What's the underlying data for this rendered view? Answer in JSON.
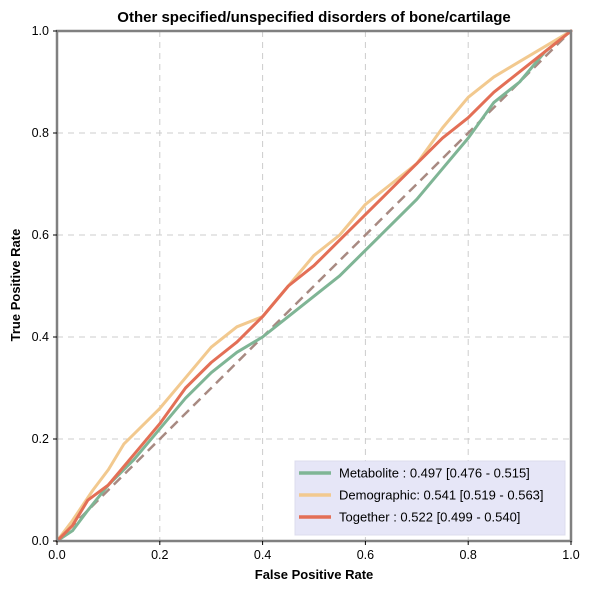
{
  "chart_data": {
    "type": "line",
    "title": "Other specified/unspecified disorders of  bone/cartilage",
    "xlabel": "False Positive Rate",
    "ylabel": "True Positive Rate",
    "xlim": [
      0,
      1
    ],
    "ylim": [
      0,
      1
    ],
    "xticks": [
      "0.0",
      "0.2",
      "0.4",
      "0.6",
      "0.8",
      "1.0"
    ],
    "yticks": [
      "0.0",
      "0.2",
      "0.4",
      "0.6",
      "0.8",
      "1.0"
    ],
    "grid": true,
    "legend_position": "bottom-right",
    "diagonal": {
      "x": [
        0,
        1
      ],
      "y": [
        0,
        1
      ],
      "color": "#a88a82",
      "style": "dashed"
    },
    "series": [
      {
        "name": "Metabolite",
        "legend_label": "Metabolite     : 0.497 [0.476 - 0.515]",
        "color": "#7fb595",
        "x": [
          0,
          0.03,
          0.06,
          0.1,
          0.15,
          0.2,
          0.25,
          0.3,
          0.35,
          0.4,
          0.45,
          0.5,
          0.55,
          0.6,
          0.65,
          0.7,
          0.75,
          0.8,
          0.85,
          0.9,
          0.95,
          1.0
        ],
        "y": [
          0,
          0.02,
          0.06,
          0.11,
          0.16,
          0.22,
          0.28,
          0.33,
          0.37,
          0.4,
          0.44,
          0.48,
          0.52,
          0.57,
          0.62,
          0.67,
          0.73,
          0.79,
          0.86,
          0.9,
          0.96,
          1.0
        ]
      },
      {
        "name": "Demographic",
        "legend_label": "Demographic: 0.541 [0.519 - 0.563]",
        "color": "#f2c98f",
        "x": [
          0,
          0.03,
          0.07,
          0.1,
          0.13,
          0.2,
          0.25,
          0.3,
          0.35,
          0.4,
          0.45,
          0.5,
          0.55,
          0.6,
          0.65,
          0.7,
          0.75,
          0.8,
          0.85,
          0.9,
          0.95,
          1.0
        ],
        "y": [
          0,
          0.04,
          0.1,
          0.14,
          0.19,
          0.26,
          0.32,
          0.38,
          0.42,
          0.44,
          0.5,
          0.56,
          0.6,
          0.66,
          0.7,
          0.74,
          0.81,
          0.87,
          0.91,
          0.94,
          0.97,
          1.0
        ]
      },
      {
        "name": "Together",
        "legend_label": "Together       : 0.522 [0.499 - 0.540]",
        "color": "#e36f56",
        "x": [
          0,
          0.03,
          0.06,
          0.1,
          0.15,
          0.2,
          0.25,
          0.3,
          0.35,
          0.4,
          0.45,
          0.5,
          0.55,
          0.6,
          0.65,
          0.7,
          0.75,
          0.8,
          0.85,
          0.9,
          0.95,
          1.0
        ],
        "y": [
          0,
          0.03,
          0.08,
          0.11,
          0.17,
          0.23,
          0.3,
          0.35,
          0.39,
          0.44,
          0.5,
          0.54,
          0.59,
          0.64,
          0.69,
          0.74,
          0.79,
          0.83,
          0.88,
          0.92,
          0.96,
          1.0
        ]
      }
    ]
  }
}
